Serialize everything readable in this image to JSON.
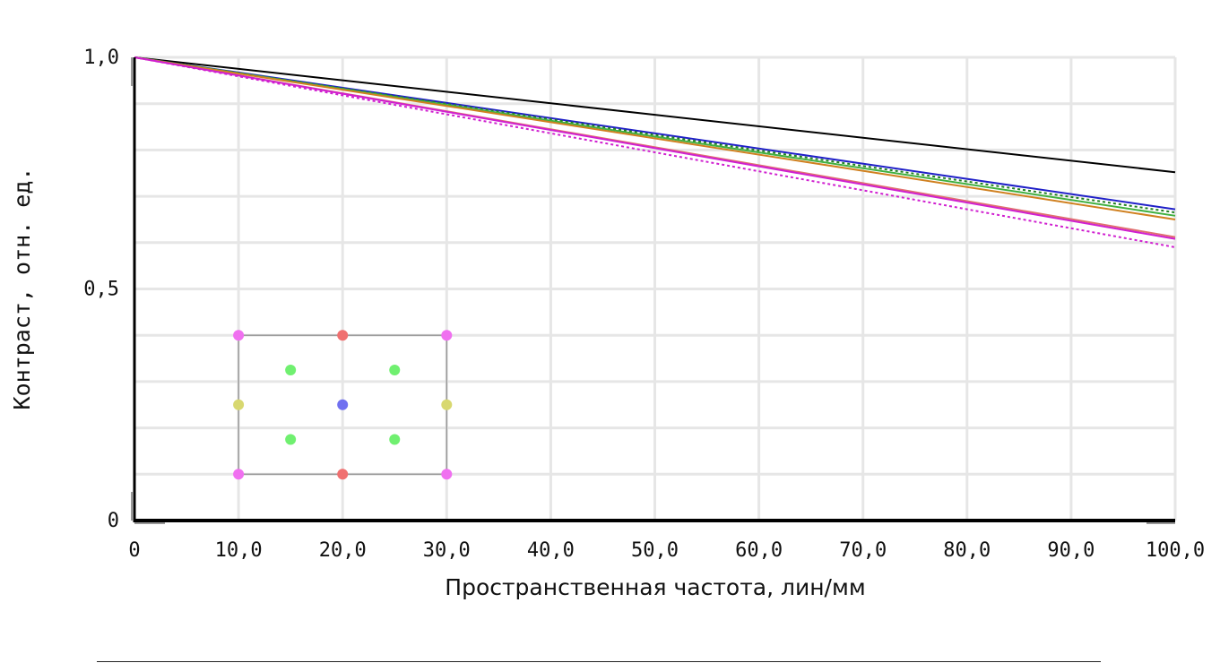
{
  "chart_data": {
    "type": "line",
    "xlabel": "Пространственная частота, лин/мм",
    "ylabel": "Контраст, отн. ед.",
    "xlim": [
      0,
      100
    ],
    "ylim": [
      0,
      1
    ],
    "x_ticks": [
      0,
      10,
      20,
      30,
      40,
      50,
      60,
      70,
      80,
      90,
      100
    ],
    "x_tick_labels": [
      "0",
      "10,0",
      "20,0",
      "30,0",
      "40,0",
      "50,0",
      "60,0",
      "70,0",
      "80,0",
      "90,0",
      "100,0"
    ],
    "y_ticks": [
      0,
      0.5,
      1.0
    ],
    "y_tick_labels": [
      "0",
      "0,5",
      "1,0"
    ],
    "grid": true,
    "series": [
      {
        "color": "#000000",
        "dash": "solid",
        "x": [
          0,
          100
        ],
        "y": [
          1.0,
          0.752
        ]
      },
      {
        "color": "#2020c8",
        "dash": "solid",
        "x": [
          0,
          100
        ],
        "y": [
          1.0,
          0.672
        ]
      },
      {
        "color": "#208020",
        "dash": "dotted",
        "x": [
          0,
          100
        ],
        "y": [
          1.0,
          0.665
        ]
      },
      {
        "color": "#40b040",
        "dash": "solid",
        "x": [
          0,
          100
        ],
        "y": [
          1.0,
          0.658
        ]
      },
      {
        "color": "#d08020",
        "dash": "solid",
        "x": [
          0,
          100
        ],
        "y": [
          1.0,
          0.65
        ]
      },
      {
        "color": "#e07070",
        "dash": "solid",
        "x": [
          0,
          100
        ],
        "y": [
          1.0,
          0.612
        ]
      },
      {
        "color": "#d020d0",
        "dash": "solid",
        "x": [
          0,
          100
        ],
        "y": [
          1.0,
          0.608
        ]
      },
      {
        "color": "#d020d0",
        "dash": "dotted",
        "x": [
          0,
          100
        ],
        "y": [
          1.0,
          0.59
        ]
      }
    ],
    "inset": {
      "frame_x": [
        10,
        30
      ],
      "frame_y": [
        0.1,
        0.4
      ],
      "points": [
        {
          "x": 10,
          "y": 0.4,
          "color": "#f070f0"
        },
        {
          "x": 20,
          "y": 0.4,
          "color": "#f07070"
        },
        {
          "x": 30,
          "y": 0.4,
          "color": "#f070f0"
        },
        {
          "x": 15,
          "y": 0.325,
          "color": "#70f070"
        },
        {
          "x": 25,
          "y": 0.325,
          "color": "#70f070"
        },
        {
          "x": 10,
          "y": 0.25,
          "color": "#d8d870"
        },
        {
          "x": 20,
          "y": 0.25,
          "color": "#7070f0"
        },
        {
          "x": 30,
          "y": 0.25,
          "color": "#d8d870"
        },
        {
          "x": 15,
          "y": 0.175,
          "color": "#70f070"
        },
        {
          "x": 25,
          "y": 0.175,
          "color": "#70f070"
        },
        {
          "x": 10,
          "y": 0.1,
          "color": "#f070f0"
        },
        {
          "x": 20,
          "y": 0.1,
          "color": "#f07070"
        },
        {
          "x": 30,
          "y": 0.1,
          "color": "#f070f0"
        }
      ]
    }
  }
}
